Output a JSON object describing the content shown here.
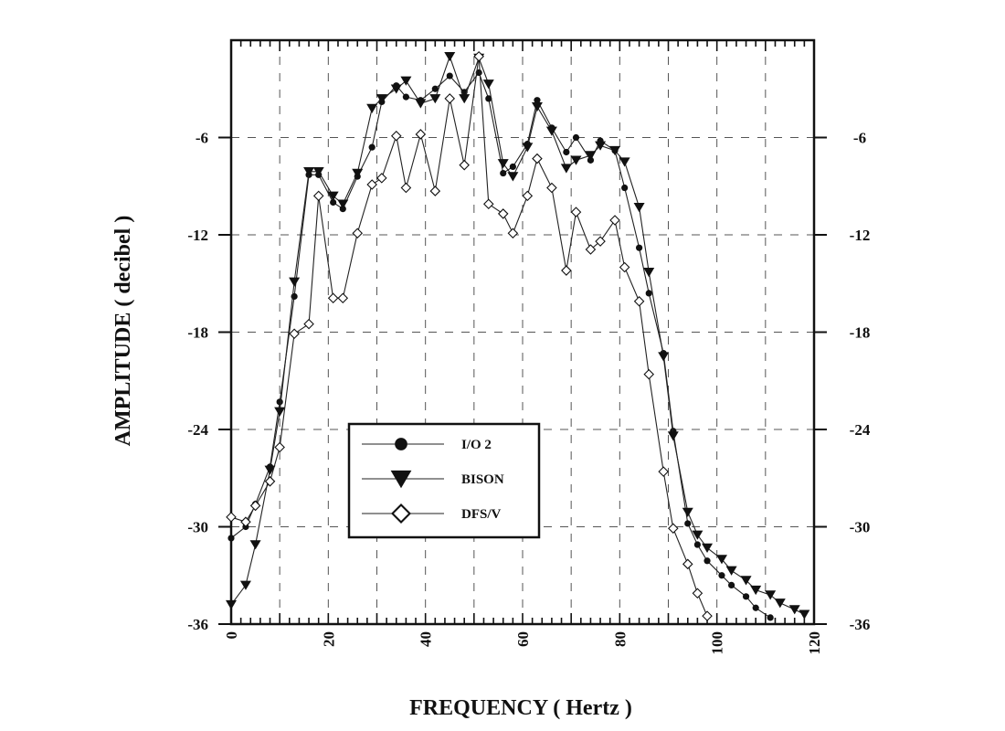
{
  "chart_data": {
    "type": "line",
    "xlabel": "FREQUENCY ( Hertz )",
    "ylabel": "AMPLITUDE ( decibel )",
    "xlim": [
      0,
      120
    ],
    "ylim": [
      -36,
      0
    ],
    "x_ticks": [
      "0",
      "20",
      "40",
      "60",
      "80",
      "100",
      "120"
    ],
    "y_ticks": [
      "-6",
      "-12",
      "-18",
      "-24",
      "-30",
      "-36"
    ],
    "grid": "dashed",
    "legend_position": "center-left",
    "series": [
      {
        "name": "I/O 2",
        "marker": "filled-circle",
        "x": [
          0,
          3,
          5,
          8,
          10,
          13,
          16,
          18,
          21,
          23,
          26,
          29,
          31,
          34,
          36,
          39,
          42,
          45,
          48,
          51,
          53,
          56,
          58,
          61,
          63,
          66,
          69,
          71,
          74,
          76,
          79,
          81,
          84,
          86,
          89,
          91,
          94,
          96,
          98,
          101,
          103,
          106,
          108,
          111
        ],
        "y": [
          -30.7,
          -30,
          -28.6,
          -26.3,
          -22.3,
          -15.8,
          -8.3,
          -8.3,
          -10,
          -10.4,
          -8.4,
          -6.6,
          -3.8,
          -2.8,
          -3.5,
          -3.7,
          -3,
          -2.2,
          -3.2,
          -2,
          -3.6,
          -8.2,
          -7.8,
          -6.4,
          -3.7,
          -5.4,
          -6.9,
          -6,
          -7.4,
          -6.2,
          -6.8,
          -9.1,
          -12.8,
          -15.6,
          -19.3,
          -24.1,
          -29.8,
          -31.1,
          -32.1,
          -33,
          -33.6,
          -34.3,
          -35,
          -35.6
        ]
      },
      {
        "name": "BISON",
        "marker": "filled-triangle-down",
        "x": [
          0,
          3,
          5,
          8,
          10,
          13,
          16,
          18,
          21,
          23,
          26,
          29,
          31,
          34,
          36,
          39,
          42,
          45,
          48,
          51,
          53,
          56,
          58,
          61,
          63,
          66,
          69,
          71,
          74,
          76,
          79,
          81,
          84,
          86,
          89,
          91,
          94,
          96,
          98,
          101,
          103,
          106,
          108,
          111,
          113,
          116,
          118
        ],
        "y": [
          -34.8,
          -33.6,
          -31.1,
          -26.5,
          -22.9,
          -14.9,
          -8.1,
          -8.1,
          -9.6,
          -10.1,
          -8.2,
          -4.2,
          -3.6,
          -3,
          -2.5,
          -3.9,
          -3.6,
          -1,
          -3.6,
          -1.1,
          -2.7,
          -7.6,
          -8.4,
          -6.6,
          -4.1,
          -5.6,
          -7.9,
          -7.4,
          -7.1,
          -6.5,
          -6.8,
          -7.5,
          -10.3,
          -14.3,
          -19.5,
          -24.4,
          -29.1,
          -30.5,
          -31.3,
          -32,
          -32.7,
          -33.3,
          -33.9,
          -34.2,
          -34.7,
          -35.1,
          -35.4
        ]
      },
      {
        "name": "DFS/V",
        "marker": "open-diamond",
        "x": [
          0,
          3,
          5,
          8,
          10,
          13,
          16,
          18,
          21,
          23,
          26,
          29,
          31,
          34,
          36,
          39,
          42,
          45,
          48,
          51,
          53,
          56,
          58,
          61,
          63,
          66,
          69,
          71,
          74,
          76,
          79,
          81,
          84,
          86,
          89,
          91,
          94,
          96,
          98
        ],
        "y": [
          -29.4,
          -29.7,
          -28.7,
          -27.2,
          -25.1,
          -18.1,
          -17.5,
          -9.6,
          -15.9,
          -15.9,
          -11.9,
          -8.9,
          -8.5,
          -5.9,
          -9.1,
          -5.8,
          -9.3,
          -3.6,
          -7.7,
          -1,
          -10.1,
          -10.7,
          -11.9,
          -9.6,
          -7.3,
          -9.1,
          -14.2,
          -10.6,
          -12.9,
          -12.4,
          -11.1,
          -14,
          -16.1,
          -20.6,
          -26.6,
          -30.1,
          -32.3,
          -34.1,
          -35.5
        ]
      }
    ]
  }
}
